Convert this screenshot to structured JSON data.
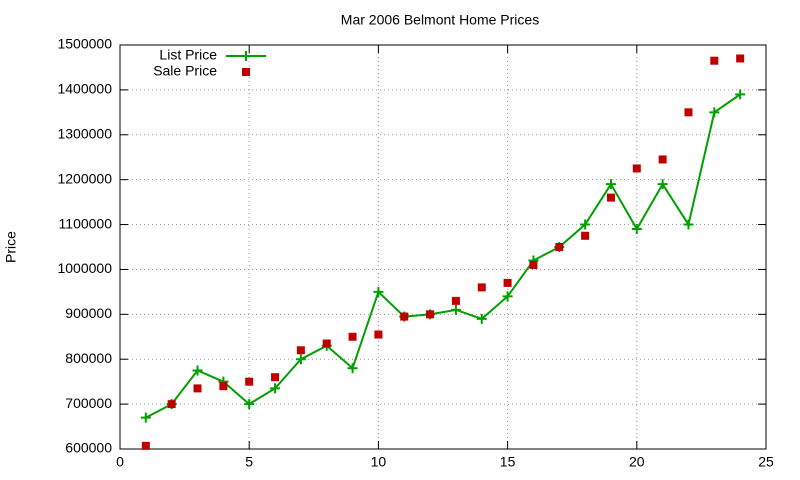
{
  "chart_data": {
    "type": "line",
    "title": "Mar 2006 Belmont Home Prices",
    "y_label": "Price",
    "x": [
      1,
      2,
      3,
      4,
      5,
      6,
      7,
      8,
      9,
      10,
      11,
      12,
      13,
      14,
      15,
      16,
      17,
      18,
      19,
      20,
      21,
      22,
      23,
      24
    ],
    "series": [
      {
        "name": "List Price",
        "color": "#00a000",
        "style": "linespoints",
        "values": [
          670000,
          700000,
          775000,
          750000,
          700000,
          735000,
          800000,
          830000,
          780000,
          950000,
          895000,
          900000,
          910000,
          890000,
          940000,
          1020000,
          1050000,
          1100000,
          1190000,
          1090000,
          1190000,
          1100000,
          1350000,
          1390000
        ]
      },
      {
        "name": "Sale Price",
        "color": "#c00000",
        "style": "points",
        "values": [
          607000,
          700000,
          735000,
          740000,
          750000,
          760000,
          820000,
          835000,
          850000,
          855000,
          895000,
          900000,
          930000,
          960000,
          970000,
          1010000,
          1050000,
          1075000,
          1160000,
          1225000,
          1245000,
          1350000,
          1465000,
          1470000
        ]
      }
    ],
    "xlim": [
      0,
      25
    ],
    "xticks": [
      0,
      5,
      10,
      15,
      20,
      25
    ],
    "ylim": [
      600000,
      1500000
    ],
    "yticks": [
      600000,
      700000,
      800000,
      900000,
      1000000,
      1100000,
      1200000,
      1300000,
      1400000,
      1500000
    ],
    "grid": true,
    "legend": "top-left"
  }
}
